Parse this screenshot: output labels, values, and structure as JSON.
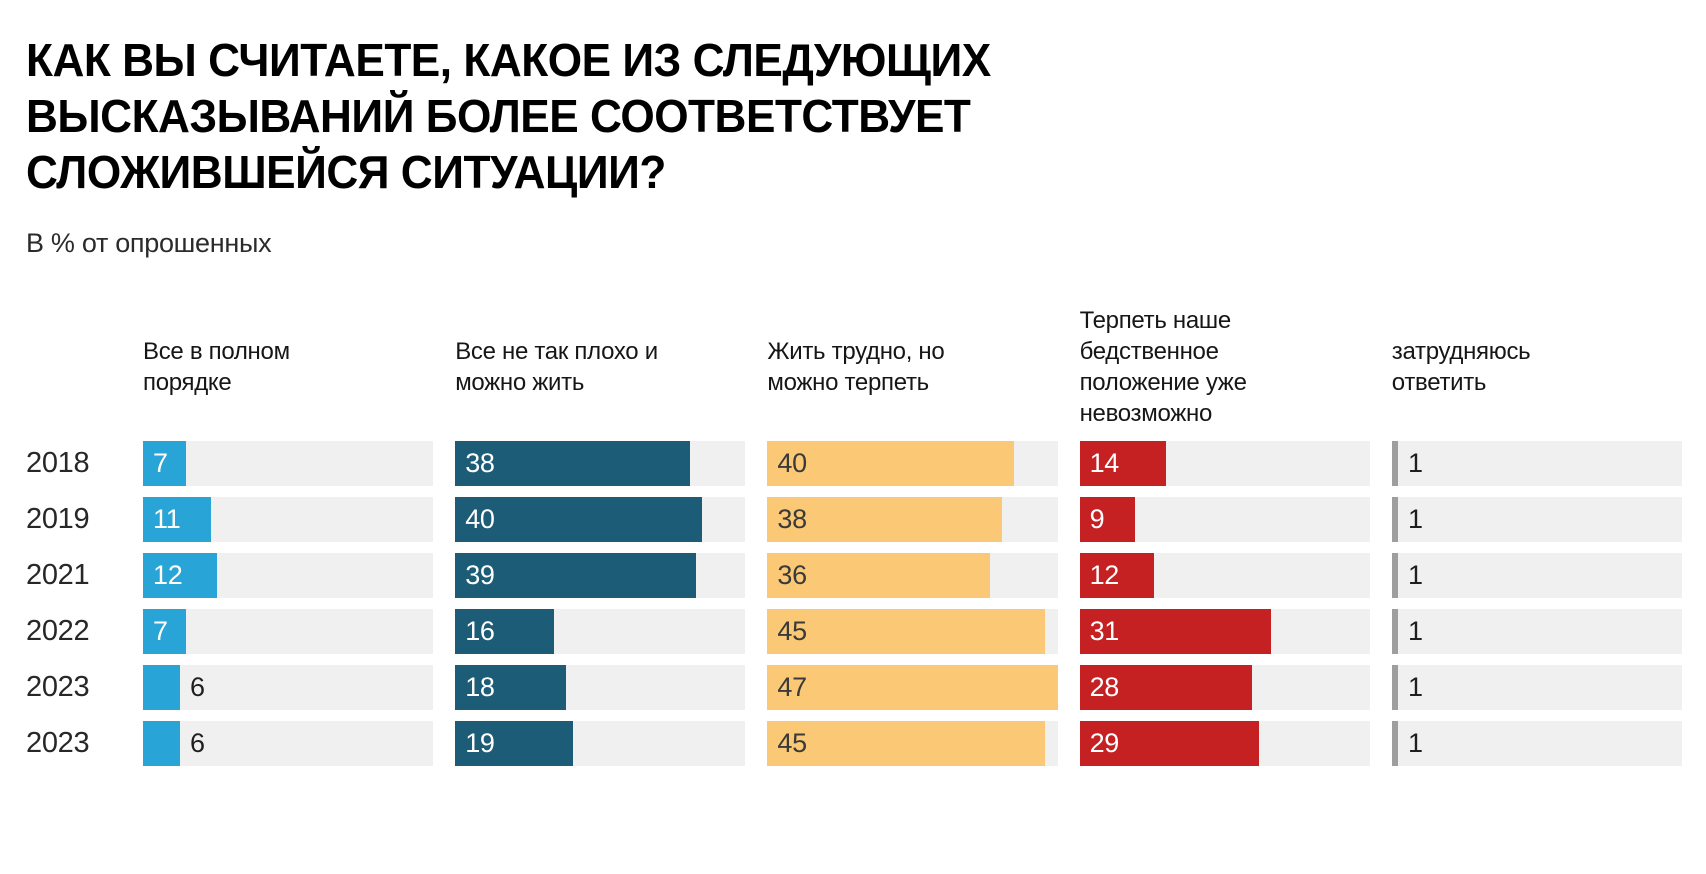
{
  "title": "КАК ВЫ СЧИТАЕТЕ, КАКОЕ ИЗ СЛЕДУЮЩИХ\nВЫСКАЗЫВАНИЙ БОЛЕЕ СООТВЕТСТВУЕТ\nСЛОЖИВШЕЙСЯ СИТУАЦИИ?",
  "subtitle": "В % от опрошенных",
  "chart_data": {
    "type": "bar",
    "orientation": "horizontal",
    "title": "КАК ВЫ СЧИТАЕТЕ, КАКОЕ ИЗ СЛЕДУЮЩИХ ВЫСКАЗЫВАНИЙ БОЛЕЕ СООТВЕТСТВУЕТ СЛОЖИВШЕЙСЯ СИТУАЦИИ?",
    "subtitle": "В % от опрошенных",
    "categories": [
      "2018",
      "2019",
      "2021",
      "2022",
      "2023",
      "2023"
    ],
    "xlim": [
      0,
      47
    ],
    "grid": false,
    "value_labels": true,
    "track_color": "#F0F0F0",
    "outside_label_color": "#1f1f1f",
    "series": [
      {
        "name": "Все в полном порядке",
        "label": "Все в полном\nпорядке",
        "color": "#28A5D6",
        "label_color": "#FFFFFF",
        "values": [
          7,
          11,
          12,
          7,
          6,
          6
        ]
      },
      {
        "name": "Все не так плохо и можно жить",
        "label": "Все не так плохо и\nможно жить",
        "color": "#1D5C76",
        "label_color": "#FFFFFF",
        "values": [
          38,
          40,
          39,
          16,
          18,
          19
        ]
      },
      {
        "name": "Жить трудно, но можно терпеть",
        "label": "Жить трудно, но\nможно терпеть",
        "color": "#FBC876",
        "label_color": "#3A3A3A",
        "values": [
          40,
          38,
          36,
          45,
          47,
          45
        ]
      },
      {
        "name": "Терпеть наше бедственное положение уже невозможно",
        "label": "Терпеть наше\nбедственное\nположение уже\nневозможно",
        "color": "#C52022",
        "label_color": "#FFFFFF",
        "values": [
          14,
          9,
          12,
          31,
          28,
          29
        ]
      },
      {
        "name": "затрудняюсь ответить",
        "label": "затрудняюсь\nответить",
        "color": "#9E9E9E",
        "label_color": "#FFFFFF",
        "values": [
          1,
          1,
          1,
          1,
          1,
          1
        ]
      }
    ]
  }
}
